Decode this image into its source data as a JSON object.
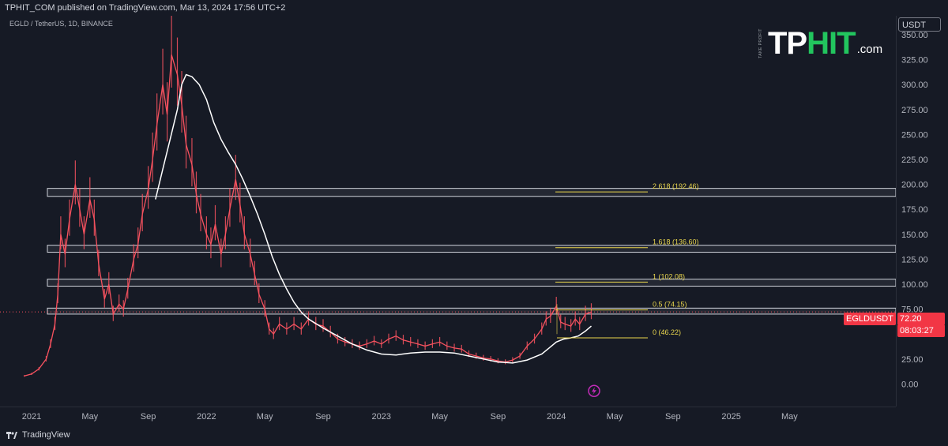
{
  "header": {
    "published": "TPHIT_COM published on TradingView.com, Mar 13, 2024 17:56 UTC+2"
  },
  "symbol_info": "EGLD / TetherUS, 1D, BINANCE",
  "logo": {
    "small_text": "TAKE PROFIT",
    "brand_a": "TP",
    "brand_b": "HIT",
    "suffix": ".com"
  },
  "price_axis": {
    "currency": "USDT",
    "current_symbol": "EGLDUSDT",
    "current_price": "72.20",
    "countdown": "08:03:27"
  },
  "footer": {
    "brand": "TradingView"
  },
  "colors": {
    "background": "#161a25",
    "candle": "#f7525f",
    "ma_line": "#ffffff",
    "fib": "#e9d64d",
    "zone_border": "#d1d4dc",
    "badge": "#f23645"
  },
  "chart_data": {
    "type": "line",
    "title": "EGLD / TetherUS, 1D, BINANCE",
    "xlabel": "",
    "ylabel": "",
    "ylim": [
      -10,
      360
    ],
    "y_ticks": [
      "0.00",
      "25.00",
      "50.00",
      "75.00",
      "100.00",
      "125.00",
      "150.00",
      "175.00",
      "200.00",
      "225.00",
      "250.00",
      "275.00",
      "300.00",
      "325.00",
      "350.00"
    ],
    "x_ticks": [
      "2021",
      "May",
      "Sep",
      "2022",
      "May",
      "Sep",
      "2023",
      "May",
      "Sep",
      "2024",
      "May",
      "Sep",
      "2025",
      "May"
    ],
    "x_tick_months": [
      0,
      4,
      8,
      12,
      16,
      20,
      24,
      28,
      32,
      36,
      40,
      44,
      48,
      52
    ],
    "series": [
      {
        "kind": "price",
        "x": [
          -0.5,
          0,
          0.5,
          1,
          1.3,
          1.6,
          1.8,
          2.0,
          2.3,
          2.6,
          3.0,
          3.3,
          3.6,
          4.0,
          4.3,
          4.6,
          5.0,
          5.3,
          5.6,
          6.0,
          6.3,
          6.6,
          7.0,
          7.3,
          7.6,
          8.0,
          8.3,
          8.6,
          9.0,
          9.3,
          9.6,
          10.0,
          10.3,
          10.6,
          11.0,
          11.3,
          11.6,
          12.0,
          12.3,
          12.6,
          13.0,
          13.3,
          13.6,
          14.0,
          14.3,
          14.6,
          15.0,
          15.3,
          15.6,
          16.0,
          16.3,
          16.6,
          17.0,
          17.5,
          18.0,
          18.5,
          19.0,
          19.5,
          20.0,
          20.5,
          21.0,
          21.5,
          22.0,
          22.5,
          23.0,
          23.5,
          24.0,
          24.5,
          25.0,
          25.5,
          26.0,
          26.5,
          27.0,
          27.5,
          28.0,
          28.5,
          29.0,
          29.5,
          30.0,
          30.5,
          31.0,
          31.5,
          32.0,
          32.5,
          33.0,
          33.5,
          34.0,
          34.5,
          35.0,
          35.3,
          35.6,
          36.0,
          36.3,
          36.6,
          37.0,
          37.3,
          37.6,
          38.0,
          38.4
        ],
        "values": [
          8,
          10,
          15,
          25,
          40,
          60,
          90,
          150,
          130,
          165,
          200,
          175,
          150,
          185,
          165,
          120,
          85,
          100,
          70,
          80,
          75,
          95,
          125,
          140,
          170,
          195,
          225,
          260,
          300,
          270,
          330,
          310,
          280,
          240,
          220,
          190,
          170,
          150,
          140,
          160,
          130,
          150,
          175,
          205,
          180,
          150,
          130,
          110,
          90,
          75,
          55,
          50,
          60,
          55,
          60,
          55,
          65,
          60,
          58,
          52,
          45,
          42,
          40,
          38,
          40,
          43,
          40,
          45,
          48,
          44,
          42,
          40,
          38,
          40,
          42,
          38,
          36,
          35,
          30,
          28,
          26,
          25,
          23,
          22,
          24,
          28,
          38,
          45,
          55,
          65,
          68,
          78,
          62,
          60,
          58,
          65,
          60,
          70,
          72.2
        ]
      },
      {
        "kind": "moving-average",
        "x": [
          8.5,
          9,
          9.5,
          10,
          10.3,
          10.6,
          11,
          11.5,
          12,
          12.5,
          13,
          13.5,
          14,
          14.5,
          15,
          15.5,
          16,
          16.5,
          17,
          17.5,
          18,
          18.5,
          19,
          20,
          21,
          22,
          23,
          24,
          25,
          26,
          27,
          28,
          29,
          30,
          31,
          32,
          33,
          34,
          35,
          35.5,
          36,
          36.5,
          37,
          37.5,
          38,
          38.4
        ],
        "values": [
          185,
          215,
          245,
          275,
          300,
          310,
          308,
          300,
          285,
          262,
          245,
          232,
          220,
          205,
          188,
          170,
          150,
          128,
          110,
          95,
          82,
          72,
          65,
          56,
          48,
          40,
          34,
          30,
          29,
          31,
          32,
          32,
          31,
          28,
          25,
          22,
          21,
          24,
          30,
          36,
          42,
          45,
          46.2,
          48,
          53,
          58
        ]
      }
    ],
    "zones": [
      {
        "label": "~192",
        "y_low": 188,
        "y_high": 196
      },
      {
        "label": "~136",
        "y_low": 132,
        "y_high": 139
      },
      {
        "label": "~102",
        "y_low": 98,
        "y_high": 105
      },
      {
        "label": "~74",
        "y_low": 70,
        "y_high": 76
      }
    ],
    "fib_levels": [
      {
        "label": "2.618 (192.46)",
        "value": 192.46
      },
      {
        "label": "1.618 (136.60)",
        "value": 136.6
      },
      {
        "label": "1 (102.08)",
        "value": 102.08
      },
      {
        "label": "0.5 (74.15)",
        "value": 74.15
      },
      {
        "label": "0 (46.22)",
        "value": 46.22
      }
    ],
    "grid": false,
    "legend": "none"
  }
}
